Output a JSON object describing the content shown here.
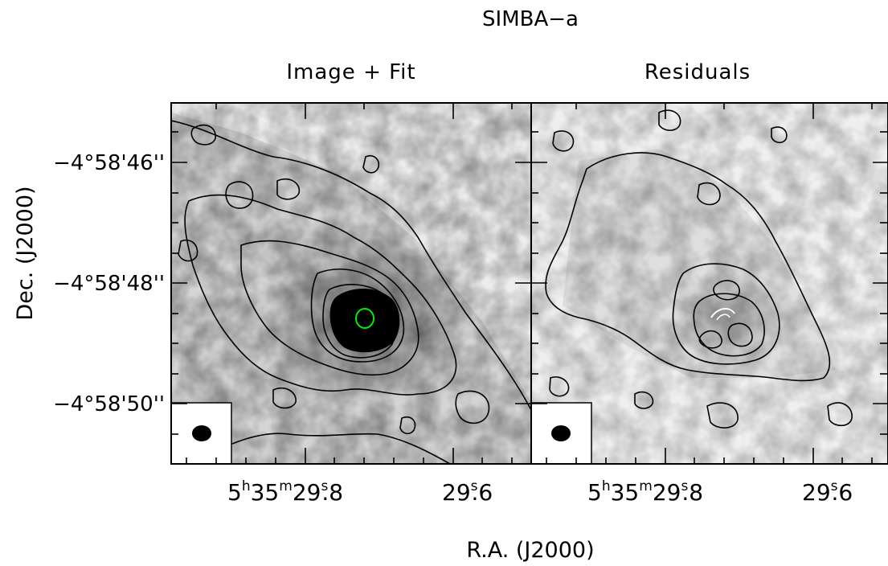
{
  "chart_data": {
    "type": "contour",
    "title": "SIMBA−a",
    "xlabel": "R.A. (J2000)",
    "ylabel": "Dec. (J2000)",
    "panels": [
      {
        "title": "Image + Fit",
        "x_ticks": [
          {
            "h": "5",
            "m": "35",
            "s": "29",
            "frac": ".8"
          },
          {
            "s": "29",
            "frac": ".6"
          }
        ],
        "y_ticks": [
          "−4°58'46''",
          "−4°58'48''",
          "−4°58'50''"
        ],
        "fit_ellipse_color": "#00ee00",
        "has_beam_inset": true
      },
      {
        "title": "Residuals",
        "x_ticks": [
          {
            "h": "5",
            "m": "35",
            "s": "29",
            "frac": ".8"
          },
          {
            "s": "29",
            "frac": ".6"
          }
        ],
        "has_beam_inset": true
      }
    ],
    "colors": {
      "contour": "#000000",
      "fit": "#00ee00",
      "background": "#ffffff"
    }
  }
}
